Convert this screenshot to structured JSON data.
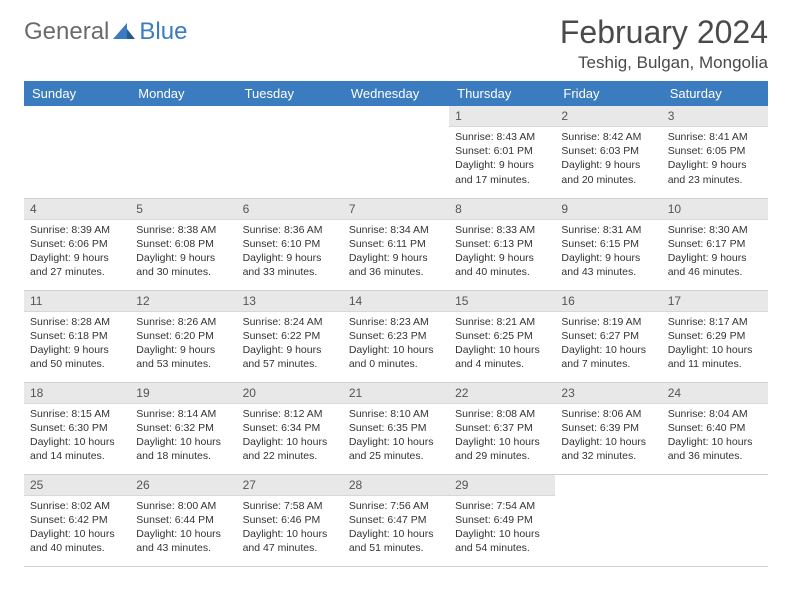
{
  "logo": {
    "text1": "General",
    "text2": "Blue"
  },
  "title": "February 2024",
  "location": "Teshig, Bulgan, Mongolia",
  "colors": {
    "header_bg": "#3b7bbf",
    "header_fg": "#ffffff",
    "day_header_bg": "#e8e8e8",
    "text": "#333333",
    "title_color": "#4a4a4a"
  },
  "weekdays": [
    "Sunday",
    "Monday",
    "Tuesday",
    "Wednesday",
    "Thursday",
    "Friday",
    "Saturday"
  ],
  "days": [
    {
      "n": 1,
      "sunrise": "8:43 AM",
      "sunset": "6:01 PM",
      "daylight": "9 hours and 17 minutes."
    },
    {
      "n": 2,
      "sunrise": "8:42 AM",
      "sunset": "6:03 PM",
      "daylight": "9 hours and 20 minutes."
    },
    {
      "n": 3,
      "sunrise": "8:41 AM",
      "sunset": "6:05 PM",
      "daylight": "9 hours and 23 minutes."
    },
    {
      "n": 4,
      "sunrise": "8:39 AM",
      "sunset": "6:06 PM",
      "daylight": "9 hours and 27 minutes."
    },
    {
      "n": 5,
      "sunrise": "8:38 AM",
      "sunset": "6:08 PM",
      "daylight": "9 hours and 30 minutes."
    },
    {
      "n": 6,
      "sunrise": "8:36 AM",
      "sunset": "6:10 PM",
      "daylight": "9 hours and 33 minutes."
    },
    {
      "n": 7,
      "sunrise": "8:34 AM",
      "sunset": "6:11 PM",
      "daylight": "9 hours and 36 minutes."
    },
    {
      "n": 8,
      "sunrise": "8:33 AM",
      "sunset": "6:13 PM",
      "daylight": "9 hours and 40 minutes."
    },
    {
      "n": 9,
      "sunrise": "8:31 AM",
      "sunset": "6:15 PM",
      "daylight": "9 hours and 43 minutes."
    },
    {
      "n": 10,
      "sunrise": "8:30 AM",
      "sunset": "6:17 PM",
      "daylight": "9 hours and 46 minutes."
    },
    {
      "n": 11,
      "sunrise": "8:28 AM",
      "sunset": "6:18 PM",
      "daylight": "9 hours and 50 minutes."
    },
    {
      "n": 12,
      "sunrise": "8:26 AM",
      "sunset": "6:20 PM",
      "daylight": "9 hours and 53 minutes."
    },
    {
      "n": 13,
      "sunrise": "8:24 AM",
      "sunset": "6:22 PM",
      "daylight": "9 hours and 57 minutes."
    },
    {
      "n": 14,
      "sunrise": "8:23 AM",
      "sunset": "6:23 PM",
      "daylight": "10 hours and 0 minutes."
    },
    {
      "n": 15,
      "sunrise": "8:21 AM",
      "sunset": "6:25 PM",
      "daylight": "10 hours and 4 minutes."
    },
    {
      "n": 16,
      "sunrise": "8:19 AM",
      "sunset": "6:27 PM",
      "daylight": "10 hours and 7 minutes."
    },
    {
      "n": 17,
      "sunrise": "8:17 AM",
      "sunset": "6:29 PM",
      "daylight": "10 hours and 11 minutes."
    },
    {
      "n": 18,
      "sunrise": "8:15 AM",
      "sunset": "6:30 PM",
      "daylight": "10 hours and 14 minutes."
    },
    {
      "n": 19,
      "sunrise": "8:14 AM",
      "sunset": "6:32 PM",
      "daylight": "10 hours and 18 minutes."
    },
    {
      "n": 20,
      "sunrise": "8:12 AM",
      "sunset": "6:34 PM",
      "daylight": "10 hours and 22 minutes."
    },
    {
      "n": 21,
      "sunrise": "8:10 AM",
      "sunset": "6:35 PM",
      "daylight": "10 hours and 25 minutes."
    },
    {
      "n": 22,
      "sunrise": "8:08 AM",
      "sunset": "6:37 PM",
      "daylight": "10 hours and 29 minutes."
    },
    {
      "n": 23,
      "sunrise": "8:06 AM",
      "sunset": "6:39 PM",
      "daylight": "10 hours and 32 minutes."
    },
    {
      "n": 24,
      "sunrise": "8:04 AM",
      "sunset": "6:40 PM",
      "daylight": "10 hours and 36 minutes."
    },
    {
      "n": 25,
      "sunrise": "8:02 AM",
      "sunset": "6:42 PM",
      "daylight": "10 hours and 40 minutes."
    },
    {
      "n": 26,
      "sunrise": "8:00 AM",
      "sunset": "6:44 PM",
      "daylight": "10 hours and 43 minutes."
    },
    {
      "n": 27,
      "sunrise": "7:58 AM",
      "sunset": "6:46 PM",
      "daylight": "10 hours and 47 minutes."
    },
    {
      "n": 28,
      "sunrise": "7:56 AM",
      "sunset": "6:47 PM",
      "daylight": "10 hours and 51 minutes."
    },
    {
      "n": 29,
      "sunrise": "7:54 AM",
      "sunset": "6:49 PM",
      "daylight": "10 hours and 54 minutes."
    }
  ],
  "first_weekday_index": 4,
  "labels": {
    "sunrise": "Sunrise:",
    "sunset": "Sunset:",
    "daylight": "Daylight:"
  }
}
